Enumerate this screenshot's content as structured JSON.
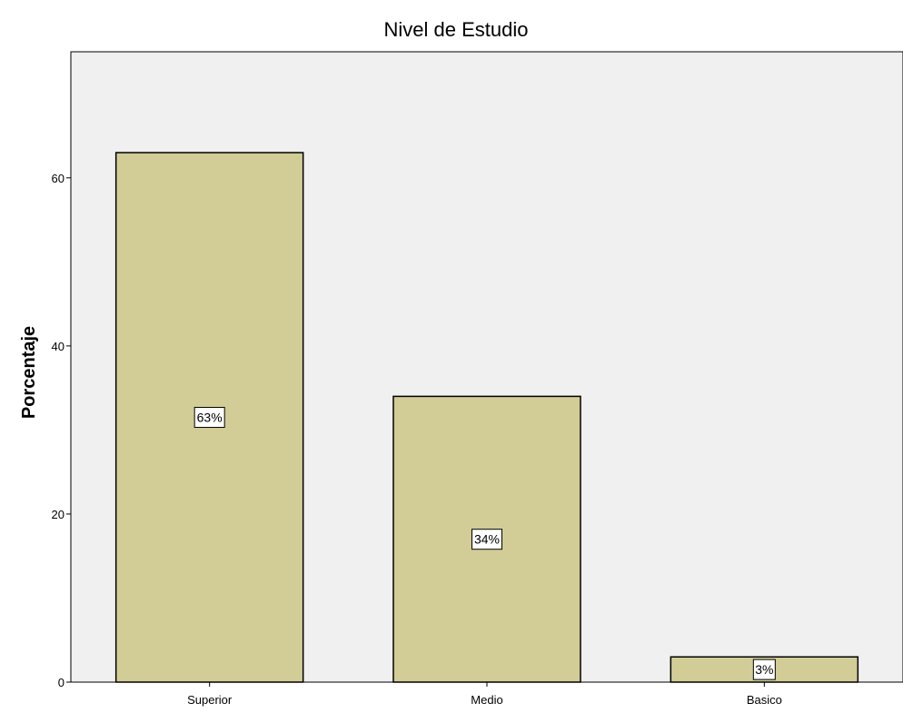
{
  "chart_data": {
    "type": "bar",
    "title": "Nivel de Estudio",
    "xlabel": "",
    "ylabel": "Porcentaje",
    "categories": [
      "Superior",
      "Medio",
      "Basico"
    ],
    "values": [
      63,
      34,
      3
    ],
    "data_labels": [
      "63%",
      "34%",
      "3%"
    ],
    "ylim": [
      0,
      75
    ],
    "yticks": [
      0,
      20,
      40,
      60
    ],
    "grid": false,
    "colors": {
      "bar_fill": "#d2cc96",
      "bar_stroke": "#000000",
      "plot_bg": "#f0f0f0"
    }
  }
}
